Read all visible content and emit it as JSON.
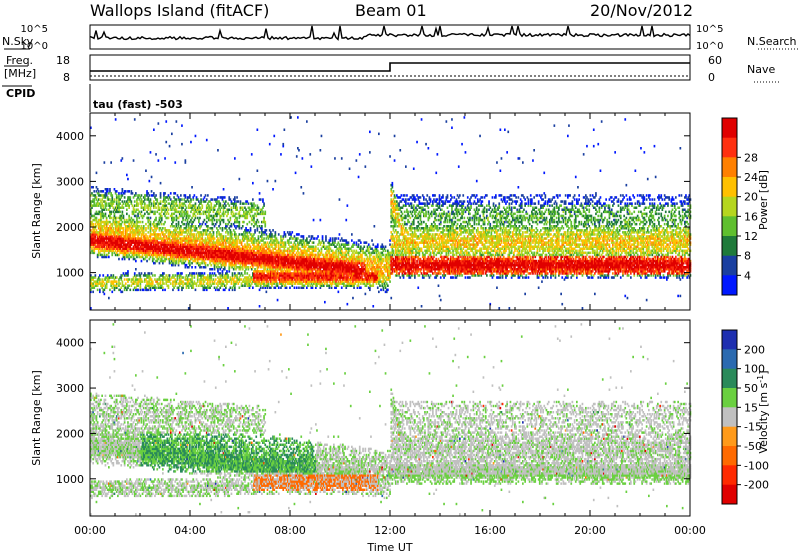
{
  "header": {
    "left_title": "Wallops Island (fitACF)",
    "center_title": "Beam 01",
    "right_title": "20/Nov/2012"
  },
  "strip_panels": {
    "nsky_label": "N.Sky",
    "nsearch_label": "N.Search",
    "noise_ticks": [
      "10^5",
      "10^0"
    ],
    "freq_label_line1": "Freq.",
    "freq_label_line2": "[MHz]",
    "freq_ticks": [
      "18",
      "8"
    ],
    "nave_label": "Nave",
    "nave_ticks": [
      "60",
      "0"
    ],
    "cpid_label": "CPID",
    "cpid_text": "tau (fast) -503"
  },
  "chart_data": [
    {
      "type": "heatmap",
      "name": "power-panel",
      "xlabel": "Time UT",
      "ylabel": "Slant Range [km]",
      "xlim": [
        0,
        24
      ],
      "ylim": [
        180,
        4500
      ],
      "x_ticks": [
        "00:00",
        "04:00",
        "08:00",
        "12:00",
        "16:00",
        "20:00",
        "00:00"
      ],
      "y_ticks": [
        1000,
        2000,
        3000,
        4000
      ],
      "colorbar_label": "Power [dB]",
      "colorbar_ticks": [
        4,
        8,
        12,
        16,
        20,
        24,
        28
      ],
      "colors": [
        "#0018ff",
        "#1a3fa0",
        "#1f7a3a",
        "#5fbf2f",
        "#b5d61f",
        "#ffc000",
        "#ff8000",
        "#ff3010",
        "#e00000"
      ]
    },
    {
      "type": "heatmap",
      "name": "velocity-panel",
      "xlabel": "Time UT",
      "ylabel": "Slant Range [km]",
      "xlim": [
        0,
        24
      ],
      "ylim": [
        180,
        4500
      ],
      "x_ticks": [
        "00:00",
        "04:00",
        "08:00",
        "12:00",
        "16:00",
        "20:00",
        "00:00"
      ],
      "y_ticks": [
        1000,
        2000,
        3000,
        4000
      ],
      "colorbar_label": "Velocity [m s",
      "colorbar_label_sup": "-1",
      "colorbar_label_end": "]",
      "colorbar_ticks": [
        200,
        100,
        50,
        15,
        -15,
        -50,
        -100,
        -200
      ],
      "colors": [
        "#1e2fb0",
        "#2b6ab0",
        "#2a8a5a",
        "#6ad040",
        "#c0c0c0",
        "#ff9a1a",
        "#ff6a00",
        "#ff2a00",
        "#e00000"
      ]
    }
  ]
}
